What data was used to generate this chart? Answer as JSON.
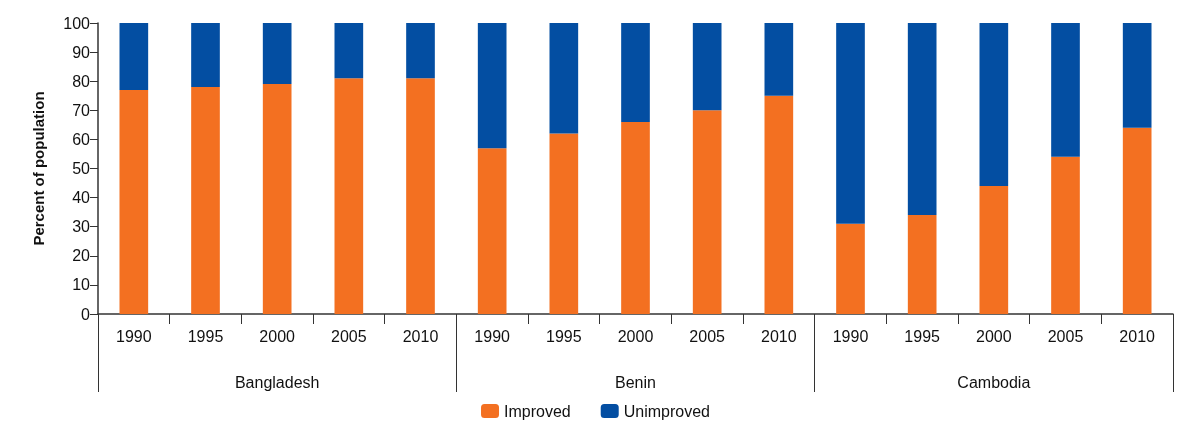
{
  "chart_data": {
    "type": "bar",
    "stacked": true,
    "ylabel": "Percent of population",
    "categories": [
      "1990",
      "1995",
      "2000",
      "2005",
      "2010",
      "1990",
      "1995",
      "2000",
      "2005",
      "2010",
      "1990",
      "1995",
      "2000",
      "2005",
      "2010"
    ],
    "annotations": [
      "Bangladesh",
      "Benin",
      "Cambodia"
    ],
    "series": [
      {
        "name": "Improved",
        "color": "#f37021",
        "values": [
          77,
          78,
          79,
          81,
          81,
          57,
          62,
          66,
          70,
          75,
          31,
          34,
          44,
          54,
          64
        ]
      },
      {
        "name": "Unimproved",
        "color": "#034ea2",
        "values": [
          23,
          22,
          21,
          19,
          19,
          43,
          38,
          34,
          30,
          25,
          69,
          66,
          56,
          46,
          36
        ]
      }
    ],
    "ylim": [
      0,
      100
    ],
    "yticks": [
      0,
      10,
      20,
      30,
      40,
      50,
      60,
      70,
      80,
      90,
      100
    ],
    "grid": false,
    "legend": "bottom"
  }
}
